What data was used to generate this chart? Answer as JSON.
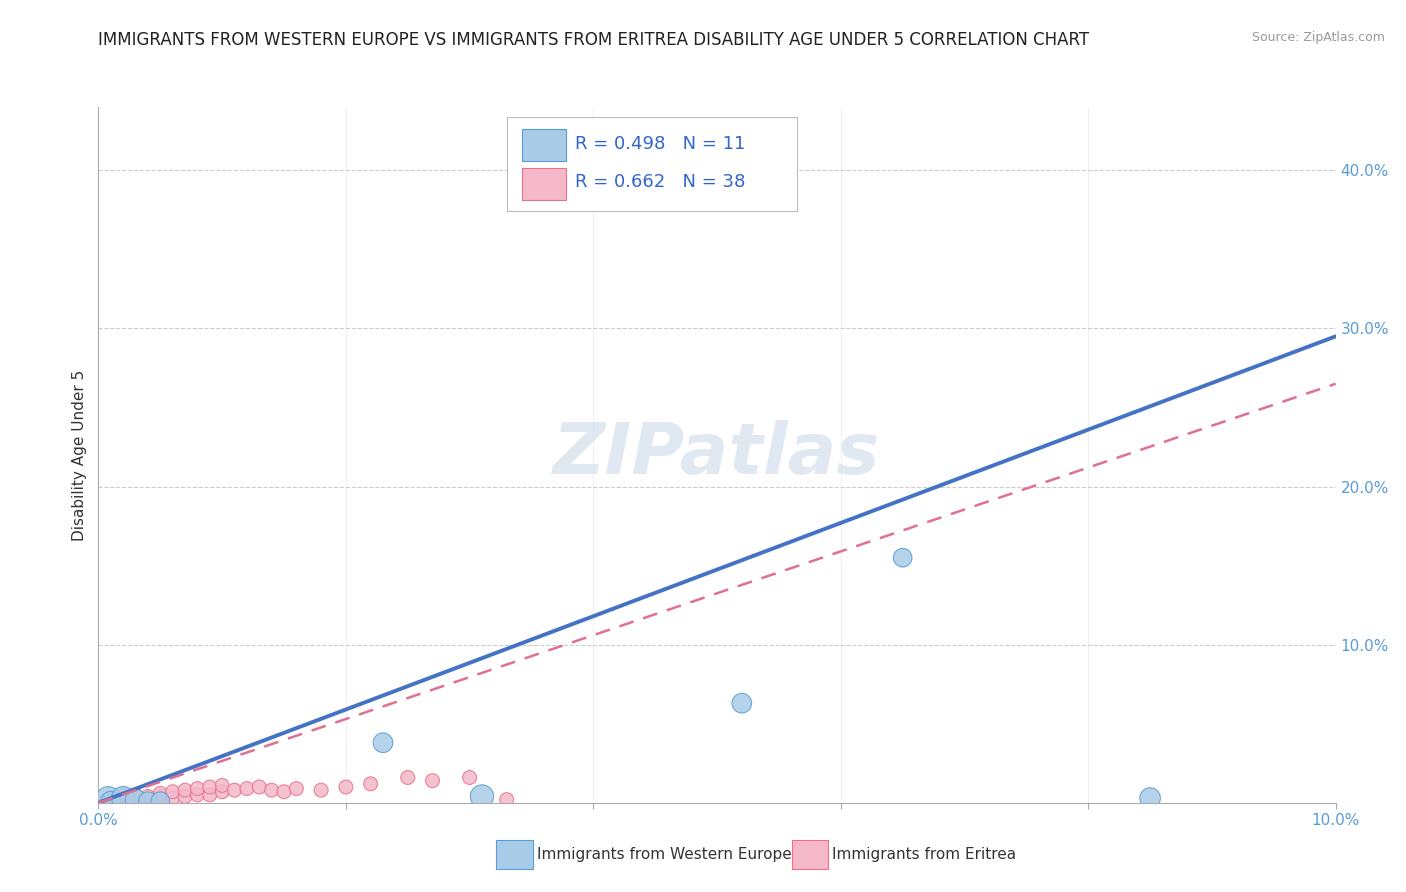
{
  "title": "IMMIGRANTS FROM WESTERN EUROPE VS IMMIGRANTS FROM ERITREA DISABILITY AGE UNDER 5 CORRELATION CHART",
  "source": "Source: ZipAtlas.com",
  "ylabel": "Disability Age Under 5",
  "x_label_bottom_left": "0.0%",
  "x_label_bottom_right": "10.0%",
  "y_ticks": [
    0.1,
    0.2,
    0.3,
    0.4
  ],
  "y_tick_labels": [
    "10.0%",
    "20.0%",
    "30.0%",
    "40.0%"
  ],
  "xlim": [
    0.0,
    0.1
  ],
  "ylim": [
    0.0,
    0.44
  ],
  "blue_R": 0.498,
  "blue_N": 11,
  "pink_R": 0.662,
  "pink_N": 38,
  "blue_color": "#a8cce8",
  "pink_color": "#f4b8c8",
  "blue_edge_color": "#5b9bd5",
  "pink_edge_color": "#e87090",
  "blue_line_color": "#4472c4",
  "pink_line_color": "#e07090",
  "legend_label_blue": "Immigrants from Western Europe",
  "legend_label_pink": "Immigrants from Eritrea",
  "blue_points_x": [
    0.0008,
    0.001,
    0.002,
    0.003,
    0.004,
    0.005,
    0.023,
    0.031,
    0.052,
    0.065,
    0.085
  ],
  "blue_points_y": [
    0.002,
    0.001,
    0.003,
    0.002,
    0.001,
    0.001,
    0.038,
    0.004,
    0.063,
    0.155,
    0.003
  ],
  "blue_sizes": [
    350,
    200,
    280,
    220,
    180,
    180,
    200,
    280,
    200,
    180,
    220
  ],
  "pink_points_x": [
    0.0005,
    0.001,
    0.001,
    0.001,
    0.002,
    0.002,
    0.002,
    0.003,
    0.003,
    0.003,
    0.004,
    0.004,
    0.005,
    0.005,
    0.005,
    0.006,
    0.006,
    0.007,
    0.007,
    0.008,
    0.008,
    0.009,
    0.009,
    0.01,
    0.01,
    0.011,
    0.012,
    0.013,
    0.014,
    0.015,
    0.016,
    0.018,
    0.02,
    0.022,
    0.025,
    0.027,
    0.03,
    0.033
  ],
  "pink_points_y": [
    0.001,
    0.001,
    0.002,
    0.003,
    0.001,
    0.003,
    0.005,
    0.001,
    0.003,
    0.005,
    0.002,
    0.004,
    0.001,
    0.004,
    0.006,
    0.003,
    0.007,
    0.004,
    0.008,
    0.005,
    0.009,
    0.005,
    0.01,
    0.007,
    0.011,
    0.008,
    0.009,
    0.01,
    0.008,
    0.007,
    0.009,
    0.008,
    0.01,
    0.012,
    0.016,
    0.014,
    0.016,
    0.002
  ],
  "pink_sizes": [
    100,
    100,
    100,
    100,
    100,
    100,
    100,
    100,
    100,
    100,
    100,
    100,
    100,
    100,
    100,
    100,
    100,
    100,
    100,
    100,
    100,
    100,
    100,
    100,
    100,
    100,
    100,
    100,
    100,
    100,
    100,
    100,
    100,
    100,
    100,
    100,
    100,
    100
  ],
  "blue_line_x0": 0.0,
  "blue_line_y0": 0.0,
  "blue_line_x1": 0.1,
  "blue_line_y1": 0.295,
  "pink_line_x0": 0.0,
  "pink_line_y0": 0.0,
  "pink_line_x1": 0.1,
  "pink_line_y1": 0.265,
  "grid_color": "#cccccc",
  "background_color": "#ffffff",
  "title_fontsize": 12,
  "axis_label_fontsize": 11,
  "tick_fontsize": 11,
  "watermark_text": "ZIPatlas",
  "watermark_color": "#c8d8e8",
  "watermark_alpha": 0.55
}
